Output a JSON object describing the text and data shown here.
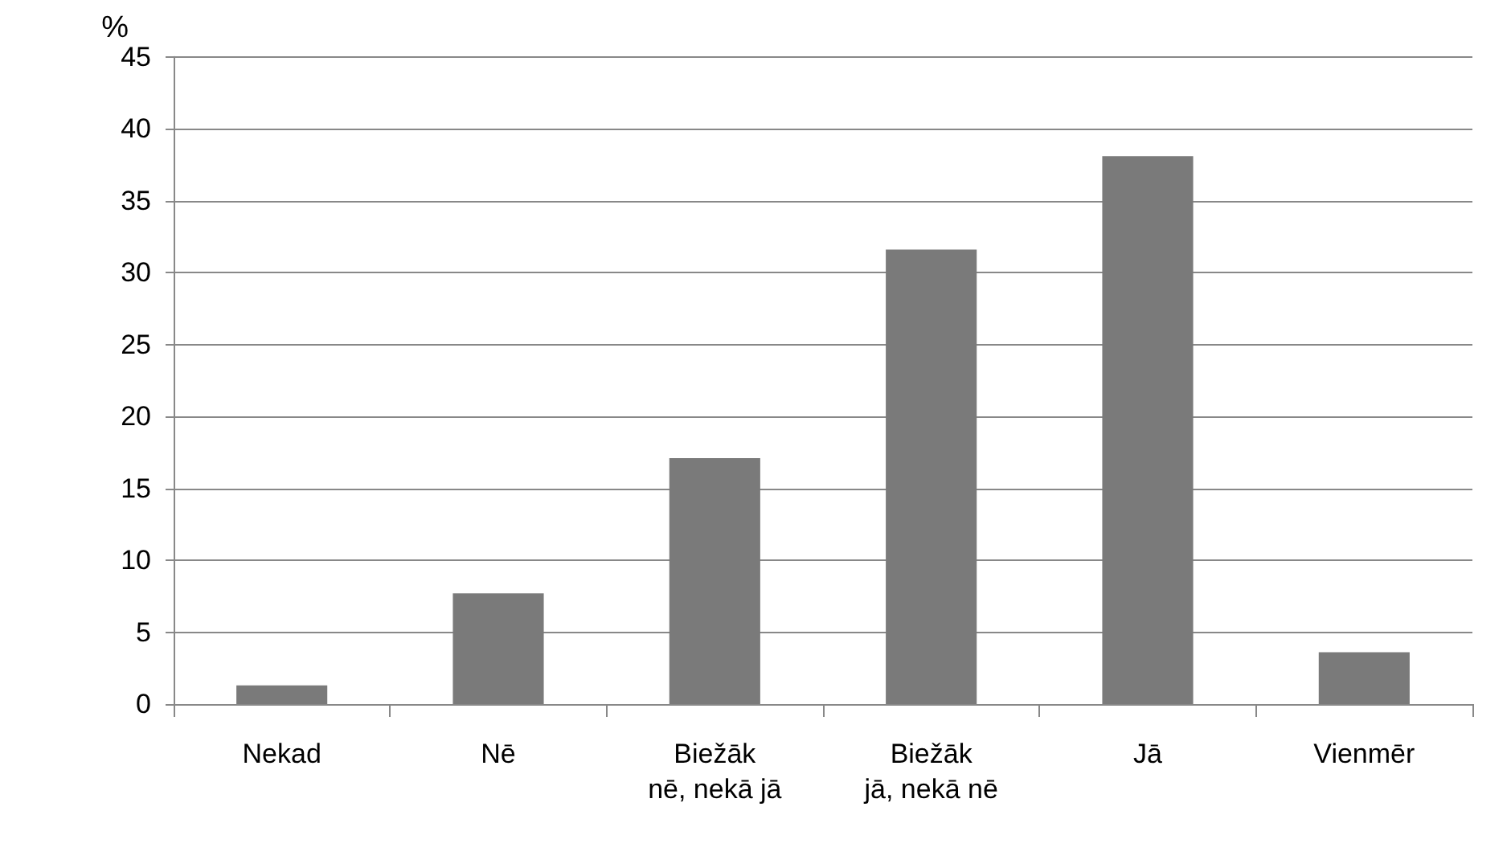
{
  "chart_data": {
    "type": "bar",
    "ylabel": "%",
    "categories": [
      "Nekad",
      "Nē",
      "Biežāk\nnē, nekā jā",
      "Biežāk\njā, nekā nē",
      "Jā",
      "Vienmēr"
    ],
    "values": [
      1.3,
      7.7,
      17.1,
      31.6,
      38.1,
      3.6
    ],
    "color": "#7a7a7a",
    "ylim": [
      0,
      45
    ],
    "yticks": [
      0,
      5,
      10,
      15,
      20,
      25,
      30,
      35,
      40,
      45
    ],
    "grid": "y"
  }
}
